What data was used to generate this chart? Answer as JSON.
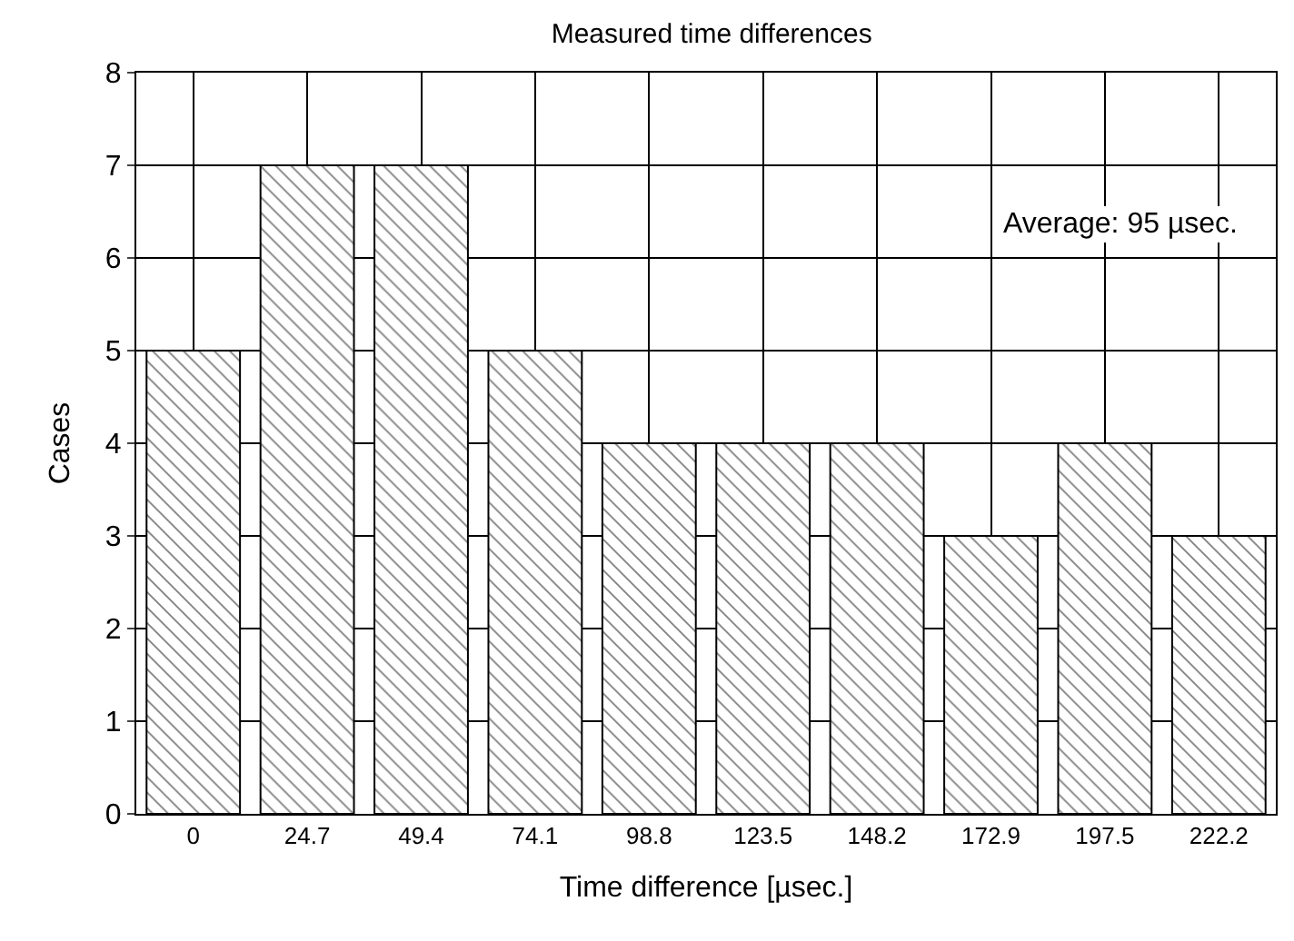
{
  "chart_data": {
    "type": "bar",
    "title": "Measured time differences",
    "xlabel": "Time difference [µsec.]",
    "ylabel": "Cases",
    "categories": [
      "0",
      "24.7",
      "49.4",
      "74.1",
      "98.8",
      "123.5",
      "148.2",
      "172.9",
      "197.5",
      "222.2"
    ],
    "values": [
      5,
      7,
      7,
      5,
      4,
      4,
      4,
      3,
      4,
      3
    ],
    "color": "#000000",
    "ylim": [
      0,
      8
    ],
    "yticks": [
      0,
      1,
      2,
      3,
      4,
      5,
      6,
      7,
      8
    ],
    "grid": true,
    "annotations": [
      "Average: 95 µsec."
    ]
  }
}
